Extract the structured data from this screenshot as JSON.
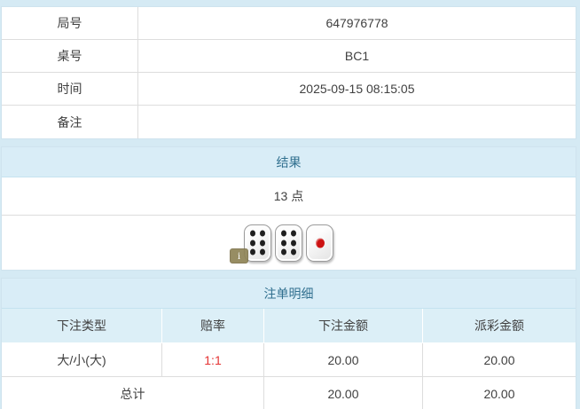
{
  "info_table": {
    "rows": [
      {
        "label": "局号",
        "value": "647976778"
      },
      {
        "label": "桌号",
        "value": "BC1"
      },
      {
        "label": "时间",
        "value": "2025-09-15 08:15:05"
      },
      {
        "label": "备注",
        "value": ""
      }
    ]
  },
  "result_section": {
    "title": "结果",
    "points": "13 点",
    "dice": [
      6,
      6,
      1
    ],
    "info_badge": "i"
  },
  "bet_section": {
    "title": "注单明细",
    "columns": [
      "下注类型",
      "赔率",
      "下注金额",
      "派彩金额"
    ],
    "rows": [
      {
        "type": "大/小(大)",
        "odds": "1:1",
        "bet": "20.00",
        "payout": "20.00"
      }
    ],
    "total": {
      "label": "总计",
      "bet": "20.00",
      "payout": "20.00"
    }
  },
  "colors": {
    "page_background": "#d5eaf4",
    "header_background": "#d9edf7",
    "header_text": "#31708f",
    "odds_red": "#e53333",
    "pip_black": "#1f1f1f",
    "pip_red": "#cc1111"
  }
}
